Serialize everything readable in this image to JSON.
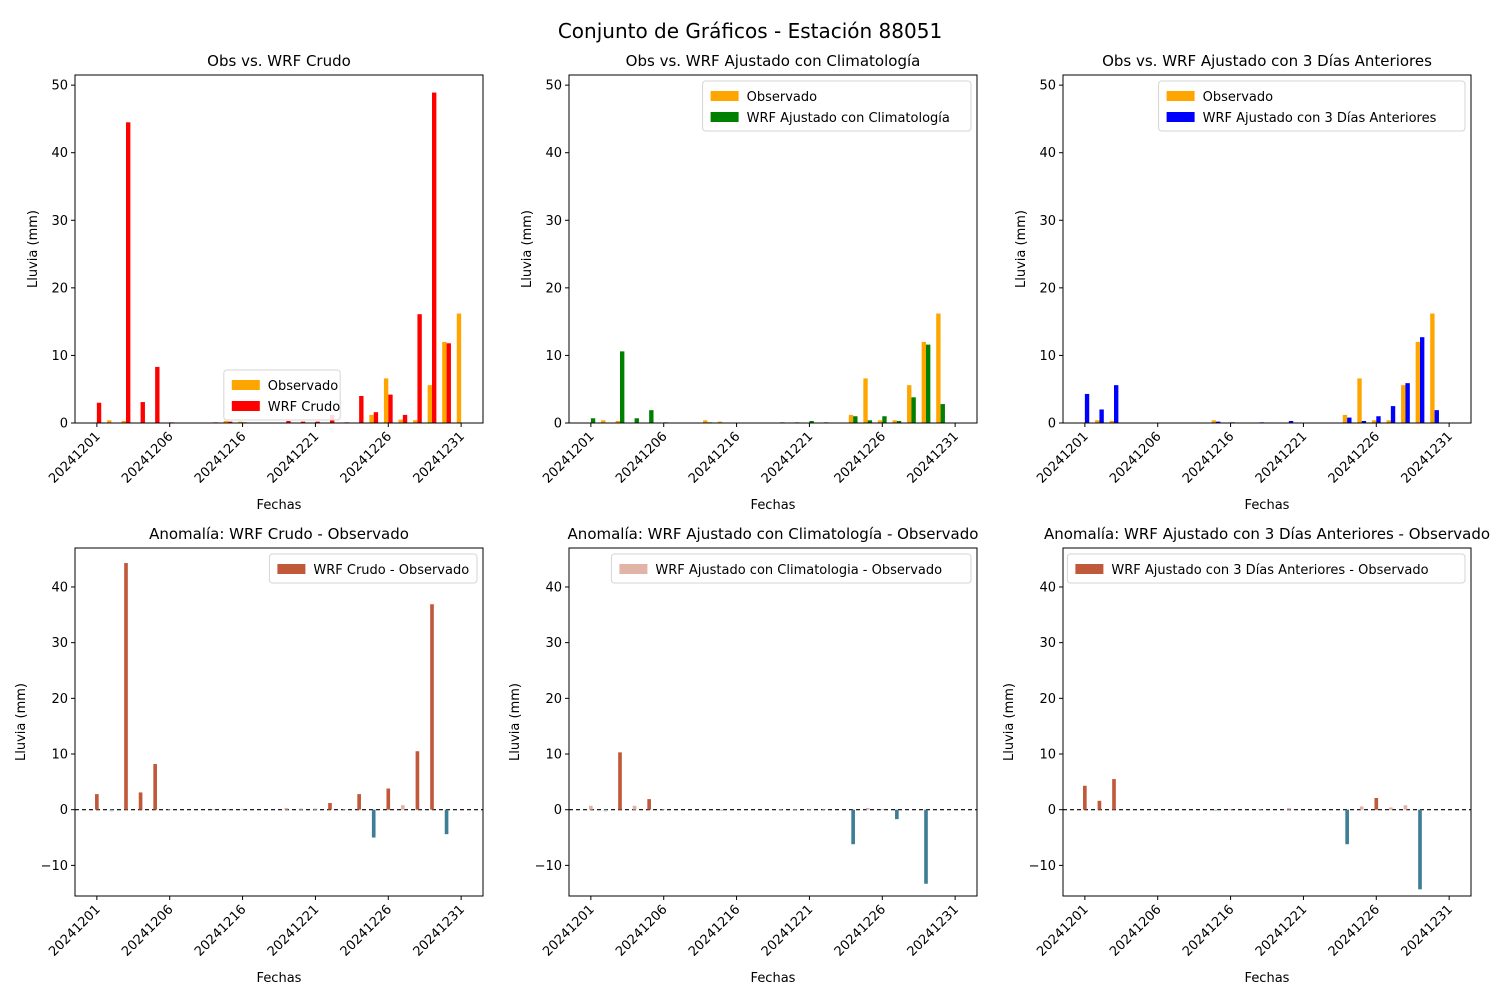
{
  "figure": {
    "title": "Conjunto de Gráficos - Estación 88051"
  },
  "colors": {
    "observed": "#ffa500",
    "wrf_raw": "#ff0000",
    "wrf_clim": "#008000",
    "wrf_3d": "#0000ff",
    "anom_pos_strong": "#c0583a",
    "anom_pos_light": "#e0b4a6",
    "anom_neg_light": "#a9c2cd",
    "anom_neg_strong": "#3e7e94"
  },
  "chart_data": [
    {
      "type": "bar",
      "title": "Obs vs. WRF Crudo",
      "xlabel": "Fechas",
      "ylabel": "Lluvia (mm)",
      "ylim": [
        0,
        51.5
      ],
      "yticks": [
        0,
        10,
        20,
        30,
        40,
        50
      ],
      "xticks": [
        "20241201",
        "20241206",
        "20241216",
        "20241221",
        "20241226",
        "20241231"
      ],
      "xtick_pos": [
        0,
        5,
        10,
        15,
        20,
        25
      ],
      "x": [
        0,
        1,
        2,
        3,
        4,
        5,
        6,
        7,
        8,
        9,
        10,
        11,
        12,
        13,
        14,
        15,
        16,
        17,
        18,
        19,
        20,
        21,
        22,
        23,
        24,
        25
      ],
      "legend": "center",
      "series": [
        {
          "name": "Observado",
          "color": "observed",
          "values": [
            0,
            0.4,
            0.3,
            0,
            0,
            0,
            0,
            0,
            0,
            0.3,
            0.2,
            0,
            0,
            0,
            0,
            0,
            0,
            0,
            0,
            1.2,
            6.6,
            0.5,
            0.4,
            5.6,
            12.0,
            16.2
          ]
        },
        {
          "name": "WRF Crudo",
          "color": "wrf_raw",
          "values": [
            3.0,
            0,
            44.5,
            3.1,
            8.3,
            0.1,
            0,
            0,
            0.1,
            0.2,
            0.1,
            0,
            0,
            0.3,
            0.2,
            0.2,
            1.2,
            0.1,
            4.0,
            1.6,
            4.2,
            1.2,
            16.1,
            48.9,
            11.8,
            0
          ]
        }
      ]
    },
    {
      "type": "bar",
      "title": "Obs vs. WRF Ajustado con Climatología",
      "xlabel": "Fechas",
      "ylabel": "Lluvia (mm)",
      "ylim": [
        0,
        51.5
      ],
      "yticks": [
        0,
        10,
        20,
        30,
        40,
        50
      ],
      "xticks": [
        "20241201",
        "20241206",
        "20241216",
        "20241221",
        "20241226",
        "20241231"
      ],
      "xtick_pos": [
        0,
        5,
        10,
        15,
        20,
        25
      ],
      "x": [
        0,
        1,
        2,
        3,
        4,
        5,
        6,
        7,
        8,
        9,
        10,
        11,
        12,
        13,
        14,
        15,
        16,
        17,
        18,
        19,
        20,
        21,
        22,
        23,
        24,
        25
      ],
      "legend": "upper right",
      "series": [
        {
          "name": "Observado",
          "color": "observed",
          "values": [
            0,
            0.4,
            0.3,
            0,
            0,
            0,
            0,
            0,
            0.4,
            0.2,
            0,
            0,
            0,
            0,
            0,
            0,
            0,
            0,
            1.2,
            6.6,
            0.4,
            0.4,
            5.6,
            12.0,
            16.2,
            0
          ]
        },
        {
          "name": "WRF Ajustado con Climatología",
          "color": "wrf_clim",
          "values": [
            0.7,
            0,
            10.6,
            0.7,
            1.9,
            0.1,
            0,
            0,
            0.1,
            0,
            0,
            0,
            0,
            0.1,
            0.1,
            0.3,
            0.1,
            0,
            1.0,
            0.4,
            1.0,
            0.3,
            3.8,
            11.6,
            2.8,
            0
          ]
        }
      ]
    },
    {
      "type": "bar",
      "title": "Obs vs. WRF Ajustado con 3 Días Anteriores",
      "xlabel": "Fechas",
      "ylabel": "Lluvia (mm)",
      "ylim": [
        0,
        51.5
      ],
      "yticks": [
        0,
        10,
        20,
        30,
        40,
        50
      ],
      "xticks": [
        "20241201",
        "20241206",
        "20241216",
        "20241221",
        "20241226",
        "20241231"
      ],
      "xtick_pos": [
        0,
        5,
        10,
        15,
        20,
        25
      ],
      "x": [
        0,
        1,
        2,
        3,
        4,
        5,
        6,
        7,
        8,
        9,
        10,
        11,
        12,
        13,
        14,
        15,
        16,
        17,
        18,
        19,
        20,
        21,
        22,
        23,
        24,
        25
      ],
      "legend": "upper right",
      "series": [
        {
          "name": "Observado",
          "color": "observed",
          "values": [
            0,
            0.4,
            0.3,
            0,
            0,
            0,
            0,
            0,
            0,
            0.4,
            0,
            0,
            0,
            0,
            0,
            0,
            0,
            0,
            1.2,
            6.6,
            0.4,
            0.4,
            5.6,
            12.0,
            16.2,
            0
          ]
        },
        {
          "name": "WRF Ajustado con 3 Días Anteriores",
          "color": "wrf_3d",
          "values": [
            4.3,
            2.0,
            5.6,
            0,
            0,
            0,
            0,
            0,
            0,
            0.2,
            0.1,
            0,
            0.1,
            0,
            0.3,
            0,
            0,
            0,
            0.8,
            0.3,
            1.0,
            2.5,
            5.9,
            12.7,
            1.9,
            0
          ]
        }
      ]
    },
    {
      "type": "bar",
      "title": "Anomalía: WRF Crudo - Observado",
      "xlabel": "Fechas",
      "ylabel": "Lluvia (mm)",
      "ylim": [
        -15.5,
        47
      ],
      "yticks": [
        -10,
        0,
        10,
        20,
        30,
        40
      ],
      "ytick_labels": [
        "−10",
        "0",
        "10",
        "20",
        "30",
        "40"
      ],
      "xticks": [
        "20241201",
        "20241206",
        "20241216",
        "20241221",
        "20241226",
        "20241231"
      ],
      "xtick_pos": [
        0,
        5,
        10,
        15,
        20,
        25
      ],
      "x": [
        0,
        1,
        2,
        3,
        4,
        5,
        6,
        7,
        8,
        9,
        10,
        11,
        12,
        13,
        14,
        15,
        16,
        17,
        18,
        19,
        20,
        21,
        22,
        23,
        24,
        25
      ],
      "zero_line": true,
      "legend": "upper right",
      "legend_label": "WRF Crudo - Observado",
      "legend_color": "anom_pos_strong",
      "values": [
        2.8,
        -0.3,
        44.3,
        3.1,
        8.2,
        0.1,
        0,
        0,
        0.1,
        0.1,
        0.1,
        0,
        0,
        0.3,
        0.2,
        0.2,
        1.2,
        0.1,
        2.8,
        -5.0,
        3.8,
        0.8,
        10.5,
        36.9,
        -4.4,
        0
      ]
    },
    {
      "type": "bar",
      "title": "Anomalía: WRF Ajustado con Climatología - Observado",
      "xlabel": "Fechas",
      "ylabel": "Lluvia (mm)",
      "ylim": [
        -15.5,
        47
      ],
      "yticks": [
        -10,
        0,
        10,
        20,
        30,
        40
      ],
      "ytick_labels": [
        "−10",
        "0",
        "10",
        "20",
        "30",
        "40"
      ],
      "xticks": [
        "20241201",
        "20241206",
        "20241216",
        "20241221",
        "20241226",
        "20241231"
      ],
      "xtick_pos": [
        0,
        5,
        10,
        15,
        20,
        25
      ],
      "x": [
        0,
        1,
        2,
        3,
        4,
        5,
        6,
        7,
        8,
        9,
        10,
        11,
        12,
        13,
        14,
        15,
        16,
        17,
        18,
        19,
        20,
        21,
        22,
        23,
        24,
        25
      ],
      "zero_line": true,
      "legend": "upper right",
      "legend_label": "WRF Ajustado con Climatologia - Observado",
      "legend_color": "anom_pos_light",
      "values": [
        0.7,
        -0.3,
        10.3,
        0.7,
        1.9,
        0.1,
        0,
        0,
        0,
        -0.2,
        0,
        0,
        0,
        0.1,
        0.1,
        0.1,
        0.1,
        0,
        -6.2,
        0.3,
        0.1,
        -1.7,
        0,
        -13.3,
        0,
        0
      ]
    },
    {
      "type": "bar",
      "title": "Anomalía: WRF Ajustado con 3 Días Anteriores - Observado",
      "xlabel": "Fechas",
      "ylabel": "Lluvia (mm)",
      "ylim": [
        -15.5,
        47
      ],
      "yticks": [
        -10,
        0,
        10,
        20,
        30,
        40
      ],
      "ytick_labels": [
        "−10",
        "0",
        "10",
        "20",
        "30",
        "40"
      ],
      "xticks": [
        "20241201",
        "20241206",
        "20241216",
        "20241221",
        "20241226",
        "20241231"
      ],
      "xtick_pos": [
        0,
        5,
        10,
        15,
        20,
        25
      ],
      "x": [
        0,
        1,
        2,
        3,
        4,
        5,
        6,
        7,
        8,
        9,
        10,
        11,
        12,
        13,
        14,
        15,
        16,
        17,
        18,
        19,
        20,
        21,
        22,
        23,
        24,
        25
      ],
      "zero_line": true,
      "legend": "upper right",
      "legend_label": "WRF Ajustado con 3 Días Anteriores - Observado",
      "legend_color": "anom_pos_strong",
      "values": [
        4.3,
        1.6,
        5.5,
        0,
        0,
        0,
        0,
        0,
        0,
        -0.2,
        0.1,
        0,
        0.1,
        0,
        0.3,
        0,
        0,
        0,
        -6.2,
        0.6,
        2.1,
        0.4,
        0.8,
        -14.3,
        0,
        0
      ]
    }
  ]
}
